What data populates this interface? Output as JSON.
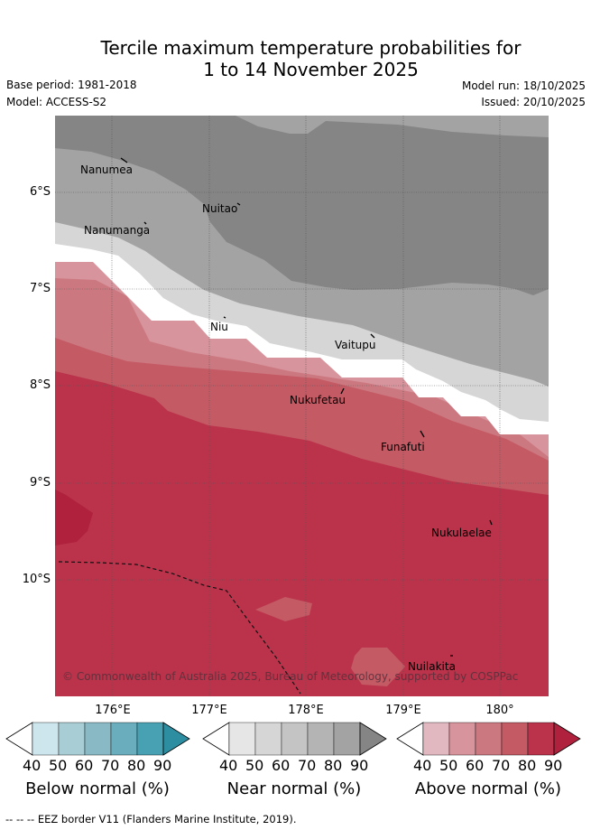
{
  "header": {
    "title_line1": "Tercile maximum temperature probabilities for",
    "title_line2": "1 to 14 November 2025",
    "base_period": "Base period: 1981-2018",
    "model": "Model: ACCESS-S2",
    "model_run": "Model run: 18/10/2025",
    "issued": "Issued: 20/10/2025"
  },
  "map": {
    "places": [
      "Nanumea",
      "Nuitao",
      "Nanumanga",
      "Niu",
      "Vaitupu",
      "Nukufetau",
      "Funafuti",
      "Nukulaelae",
      "Nuilakita"
    ],
    "lat_labels": [
      "6°S",
      "7°S",
      "8°S",
      "9°S",
      "10°S"
    ],
    "lon_labels": [
      "176°E",
      "177°E",
      "178°E",
      "179°E",
      "180°"
    ],
    "copyright": "© Commonwealth of Australia 2025, Bureau of Meteorology, supported by COSPPac"
  },
  "colorbars": {
    "ticks": [
      "40",
      "50",
      "60",
      "70",
      "80",
      "90"
    ],
    "below": {
      "title": "Below normal (%)",
      "colors": [
        "#ffffff",
        "#cde5ec",
        "#a9cdd4",
        "#8ab9c6",
        "#6aadbc",
        "#48a1b2",
        "#2e8ea1"
      ]
    },
    "near": {
      "title": "Near normal (%)",
      "colors": [
        "#ffffff",
        "#e6e6e6",
        "#d6d6d6",
        "#c4c4c4",
        "#b4b4b4",
        "#a3a3a3",
        "#858585"
      ]
    },
    "above": {
      "title": "Above normal (%)",
      "colors": [
        "#ffffff",
        "#e2b8c0",
        "#d7949c",
        "#cc7880",
        "#c45a64",
        "#ba334b",
        "#b0213d"
      ]
    }
  },
  "footer": {
    "eez_legend": "-- -- -- EEZ border V11 (Flanders Marine Institute, 2019)."
  }
}
